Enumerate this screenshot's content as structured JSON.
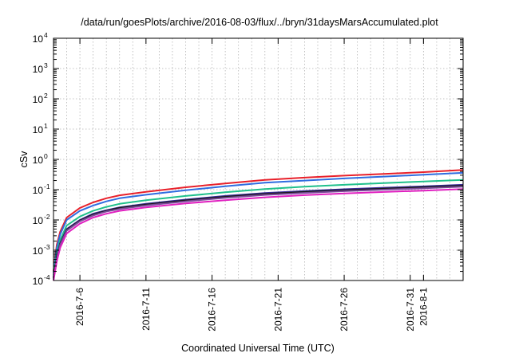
{
  "chart_data": {
    "type": "line",
    "title": "/data/run/goesPlots/archive/2016-08-03/flux/../bryn/31daysMarsAccumulated.plot",
    "xlabel": "Coordinated Universal Time (UTC)",
    "ylabel": "cSv",
    "yscale": "log",
    "ylim": [
      0.0001,
      10000
    ],
    "y_ticks": [
      {
        "base": "10",
        "exp": "-4",
        "value": 0.0001
      },
      {
        "base": "10",
        "exp": "-3",
        "value": 0.001
      },
      {
        "base": "10",
        "exp": "-2",
        "value": 0.01
      },
      {
        "base": "10",
        "exp": "-1",
        "value": 0.1
      },
      {
        "base": "10",
        "exp": "0",
        "value": 1
      },
      {
        "base": "10",
        "exp": "1",
        "value": 10
      },
      {
        "base": "10",
        "exp": "2",
        "value": 100
      },
      {
        "base": "10",
        "exp": "3",
        "value": 1000
      },
      {
        "base": "10",
        "exp": "4",
        "value": 10000
      }
    ],
    "xlim": [
      "2016-07-04T00:00",
      "2016-08-04T00:00"
    ],
    "x_ticks": [
      "2016-7-6",
      "2016-7-11",
      "2016-7-16",
      "2016-7-21",
      "2016-7-26",
      "2016-7-31",
      "2016-8-1"
    ],
    "grid": true,
    "x": [
      "2016-07-04T00:00",
      "2016-07-04T06:00",
      "2016-07-04T12:00",
      "2016-07-05T00:00",
      "2016-07-06T00:00",
      "2016-07-07T00:00",
      "2016-07-08T00:00",
      "2016-07-09T00:00",
      "2016-07-11T00:00",
      "2016-07-14T00:00",
      "2016-07-17T00:00",
      "2016-07-20T00:00",
      "2016-07-23T00:00",
      "2016-07-26T00:00",
      "2016-07-29T00:00",
      "2016-08-01T00:00",
      "2016-08-04T00:00"
    ],
    "series": [
      {
        "color": "#e8202a",
        "values": [
          0.0002,
          0.0015,
          0.004,
          0.012,
          0.025,
          0.038,
          0.052,
          0.065,
          0.085,
          0.12,
          0.16,
          0.21,
          0.25,
          0.29,
          0.33,
          0.38,
          0.45
        ]
      },
      {
        "color": "#2f6de0",
        "values": [
          0.00018,
          0.0012,
          0.0033,
          0.01,
          0.02,
          0.03,
          0.041,
          0.052,
          0.068,
          0.095,
          0.13,
          0.17,
          0.2,
          0.235,
          0.27,
          0.31,
          0.36
        ]
      },
      {
        "color": "#20c08c",
        "values": [
          0.00015,
          0.0008,
          0.0022,
          0.0065,
          0.013,
          0.02,
          0.027,
          0.034,
          0.045,
          0.062,
          0.082,
          0.105,
          0.125,
          0.145,
          0.165,
          0.185,
          0.21
        ]
      },
      {
        "color": "#3a2a9a",
        "values": [
          0.00013,
          0.0006,
          0.0017,
          0.005,
          0.01,
          0.016,
          0.021,
          0.026,
          0.034,
          0.047,
          0.062,
          0.077,
          0.09,
          0.103,
          0.116,
          0.128,
          0.145
        ]
      },
      {
        "color": "#1a1a1a",
        "values": [
          0.00012,
          0.00055,
          0.0016,
          0.0047,
          0.0095,
          0.015,
          0.02,
          0.025,
          0.032,
          0.044,
          0.058,
          0.072,
          0.084,
          0.096,
          0.108,
          0.12,
          0.135
        ]
      },
      {
        "color": "#7a4a9a",
        "values": [
          0.00011,
          0.0005,
          0.0015,
          0.0044,
          0.009,
          0.014,
          0.019,
          0.023,
          0.03,
          0.041,
          0.054,
          0.067,
          0.078,
          0.089,
          0.1,
          0.111,
          0.125
        ]
      },
      {
        "color": "#e020c0",
        "values": [
          0.0001,
          0.00042,
          0.0012,
          0.0036,
          0.0075,
          0.012,
          0.016,
          0.02,
          0.026,
          0.035,
          0.045,
          0.056,
          0.066,
          0.075,
          0.084,
          0.093,
          0.105
        ]
      }
    ]
  }
}
